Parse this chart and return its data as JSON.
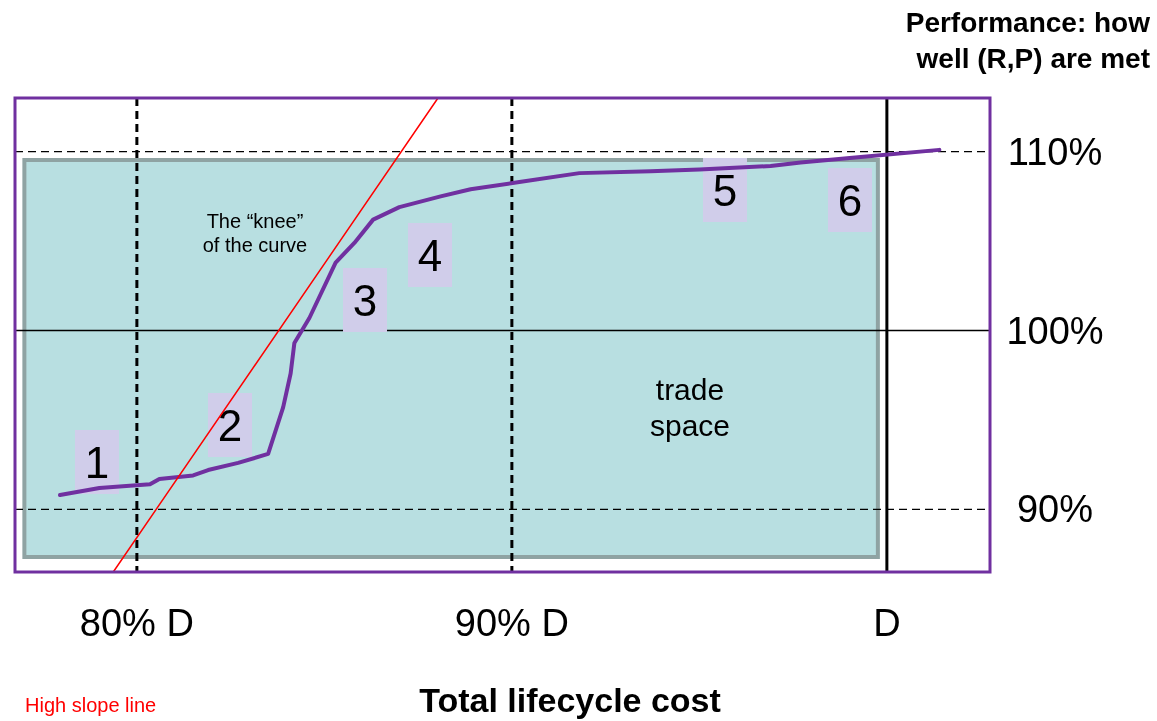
{
  "chart_data": {
    "type": "line",
    "xlabel": "Total lifecycle cost",
    "ylabel": "Performance: how well (R,P) are met",
    "xlim": [
      76.75,
      102.75
    ],
    "ylim": [
      86.5,
      113
    ],
    "xticks": [
      {
        "value": 80,
        "label": "80% D"
      },
      {
        "value": 90,
        "label": "90% D"
      },
      {
        "value": 100,
        "label": "D"
      }
    ],
    "yticks": [
      {
        "value": 90,
        "label": "90%"
      },
      {
        "value": 100,
        "label": "100%"
      },
      {
        "value": 110,
        "label": "110%"
      }
    ],
    "grid": false,
    "marker": "none",
    "bands": [
      {
        "axis": "x",
        "from": 77,
        "to": 99.76,
        "label": "trade space",
        "color": "#b8dfe1"
      }
    ],
    "series": [
      {
        "color": "#7030a0",
        "x": [
          77.95,
          79.0,
          80.35,
          80.6,
          81.5,
          81.9,
          82.7,
          83.5,
          83.9,
          84.1,
          84.2,
          84.6,
          85.3,
          85.8,
          86.3,
          87.0,
          88.1,
          88.9,
          90.2,
          91.8,
          93.7,
          95.0,
          96.9,
          97.7,
          99.3,
          101.4
        ],
        "values": [
          90.8,
          91.2,
          91.4,
          91.7,
          91.9,
          92.2,
          92.6,
          93.1,
          95.7,
          97.6,
          99.3,
          100.7,
          103.8,
          104.9,
          106.2,
          106.9,
          107.5,
          107.9,
          108.3,
          108.8,
          108.9,
          109.0,
          109.2,
          109.4,
          109.7,
          110.1
        ]
      },
      {
        "color": "#ff0000",
        "x": [
          79.37,
          88.03
        ],
        "values": [
          86.5,
          113
        ]
      }
    ],
    "ref_lines": [
      {
        "axis": "y",
        "value": 90,
        "line_style": "dashed",
        "color": "#000000"
      },
      {
        "axis": "y",
        "value": 100,
        "line_style": "solid",
        "color": "#000000"
      },
      {
        "axis": "y",
        "value": 110,
        "line_style": "dashed",
        "color": "#000000"
      },
      {
        "axis": "x",
        "value": 80,
        "line_style": "dashed",
        "color": "#000000"
      },
      {
        "axis": "x",
        "value": 90,
        "line_style": "dashed",
        "color": "#000000"
      },
      {
        "axis": "x",
        "value": 100,
        "line_style": "solid",
        "color": "#000000"
      }
    ],
    "annotations": [
      "The “knee” of the curve",
      "High slope line",
      "1",
      "2",
      "3",
      "4",
      "5",
      "6"
    ]
  }
}
